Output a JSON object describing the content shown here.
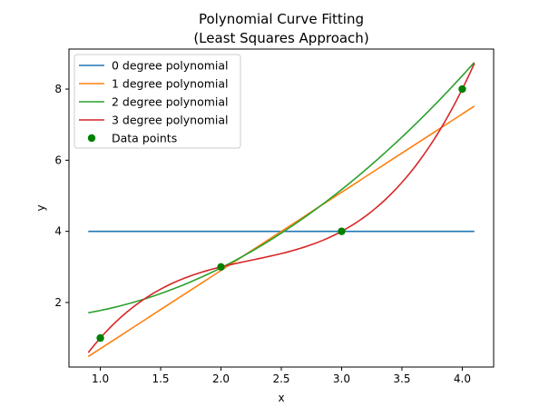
{
  "chart_data": {
    "type": "line",
    "title": "Polynomial Curve Fitting",
    "subtitle": "(Least Squares Approach)",
    "xlabel": "x",
    "ylabel": "y",
    "xlim": [
      0.74,
      4.26
    ],
    "ylim": [
      0.185,
      9.125
    ],
    "xticks": [
      1.0,
      1.5,
      2.0,
      2.5,
      3.0,
      3.5,
      4.0
    ],
    "xtick_labels": [
      "1.0",
      "1.5",
      "2.0",
      "2.5",
      "3.0",
      "3.5",
      "4.0"
    ],
    "yticks": [
      2,
      4,
      6,
      8
    ],
    "ytick_labels": [
      "2",
      "4",
      "6",
      "8"
    ],
    "grid": false,
    "legend_placement": "upper-left",
    "curve_x_range": [
      0.9,
      4.1
    ],
    "series": [
      {
        "name": "0 degree polynomial",
        "color": "#1f77b4",
        "coefficients_desc": [
          4
        ]
      },
      {
        "name": "1 degree polynomial",
        "color": "#ff7f0e",
        "coefficients_desc": [
          2.2,
          -1.5
        ]
      },
      {
        "name": "2 degree polynomial",
        "color": "#2ca02c",
        "coefficients_desc": [
          0.5,
          -0.3,
          1.575
        ]
      },
      {
        "name": "3 degree polynomial",
        "color": "#d62728",
        "coefficients_desc": [
          0.6666667,
          -4.5,
          10.8333333,
          -6.0
        ]
      }
    ],
    "points": {
      "name": "Data points",
      "color": "#008000",
      "x": [
        1,
        2,
        3,
        4
      ],
      "y": [
        1,
        3,
        4,
        8
      ]
    }
  }
}
